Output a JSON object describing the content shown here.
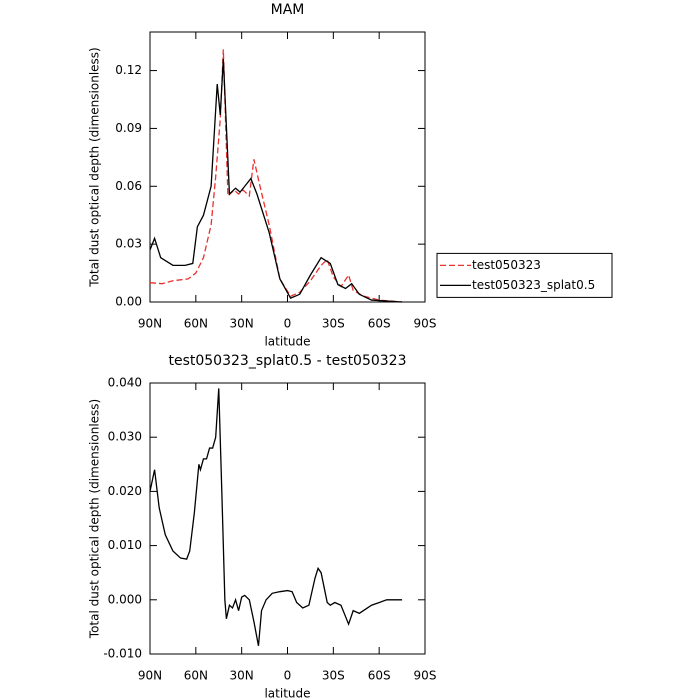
{
  "chart_data": [
    {
      "type": "line",
      "title": "MAM",
      "xlabel": "latitude",
      "ylabel": "Total dust optical depth (dimensionless)",
      "xlim": [
        90,
        -90
      ],
      "xticks": [
        {
          "value": 90,
          "label": "90N"
        },
        {
          "value": 60,
          "label": "60N"
        },
        {
          "value": 30,
          "label": "30N"
        },
        0,
        {
          "value": -30,
          "label": "30S"
        },
        {
          "value": -60,
          "label": "60S"
        },
        {
          "value": -90,
          "label": "90S"
        }
      ],
      "ylim": [
        0,
        0.14
      ],
      "yticks": [
        {
          "value": 0,
          "label": "0.00"
        },
        {
          "value": 0.03,
          "label": "0.03"
        },
        {
          "value": 0.06,
          "label": "0.06"
        },
        {
          "value": 0.09,
          "label": "0.09"
        },
        {
          "value": 0.12,
          "label": "0.12"
        }
      ],
      "legend": "right",
      "series": [
        {
          "name": "test050323",
          "color": "#e8312f",
          "dashed": true,
          "x": [
            90,
            82,
            75,
            65,
            60,
            55,
            50,
            47,
            44,
            42,
            39,
            35,
            32,
            29,
            25,
            22,
            18,
            12,
            5,
            -2,
            -8,
            -15,
            -22,
            -26,
            -30,
            -35,
            -40,
            -43,
            -50,
            -60,
            -75
          ],
          "values": [
            0.01,
            0.0095,
            0.011,
            0.012,
            0.015,
            0.023,
            0.04,
            0.065,
            0.095,
            0.131,
            0.055,
            0.058,
            0.056,
            0.058,
            0.055,
            0.074,
            0.06,
            0.04,
            0.012,
            0.003,
            0.005,
            0.011,
            0.019,
            0.022,
            0.013,
            0.008,
            0.014,
            0.006,
            0.003,
            0.001,
            0.0
          ]
        },
        {
          "name": "test050323_splat0.5",
          "color": "#000000",
          "dashed": false,
          "x": [
            90,
            87,
            83,
            75,
            67,
            62,
            59,
            55,
            50,
            46,
            44,
            42,
            38,
            34,
            31,
            27,
            24,
            20,
            12,
            5,
            -2,
            -8,
            -15,
            -22,
            -28,
            -33,
            -38,
            -42,
            -47,
            -55,
            -75
          ],
          "values": [
            0.027,
            0.033,
            0.023,
            0.019,
            0.019,
            0.02,
            0.039,
            0.045,
            0.06,
            0.113,
            0.097,
            0.126,
            0.056,
            0.059,
            0.057,
            0.061,
            0.064,
            0.056,
            0.036,
            0.012,
            0.002,
            0.004,
            0.014,
            0.023,
            0.02,
            0.009,
            0.007,
            0.0095,
            0.004,
            0.001,
            0.0
          ]
        }
      ]
    },
    {
      "type": "line",
      "title": "test050323_splat0.5 - test050323",
      "xlabel": "latitude",
      "ylabel": "Total dust optical depth (dimensionless)",
      "xlim": [
        90,
        -90
      ],
      "xticks": [
        {
          "value": 90,
          "label": "90N"
        },
        {
          "value": 60,
          "label": "60N"
        },
        {
          "value": 30,
          "label": "30N"
        },
        0,
        {
          "value": -30,
          "label": "30S"
        },
        {
          "value": -60,
          "label": "60S"
        },
        {
          "value": -90,
          "label": "90S"
        }
      ],
      "ylim": [
        -0.01,
        0.04
      ],
      "yticks": [
        {
          "value": -0.01,
          "label": "-0.010"
        },
        {
          "value": 0,
          "label": "0.000"
        },
        {
          "value": 0.01,
          "label": "0.010"
        },
        {
          "value": 0.02,
          "label": "0.020"
        },
        {
          "value": 0.03,
          "label": "0.030"
        },
        {
          "value": 0.04,
          "label": "0.040"
        }
      ],
      "series": [
        {
          "color": "#000000",
          "dashed": false,
          "x": [
            90,
            87,
            84,
            80,
            75,
            70,
            66,
            64,
            61,
            58,
            57,
            55,
            53,
            51,
            49,
            47,
            45,
            43,
            41,
            40,
            38,
            36,
            34,
            32,
            30,
            28,
            25,
            22,
            19,
            17,
            14,
            10,
            5,
            0,
            -3,
            -6,
            -10,
            -14,
            -18,
            -20,
            -22,
            -26,
            -28,
            -31,
            -35,
            -40,
            -43,
            -47,
            -55,
            -65,
            -75
          ],
          "values": [
            0.02,
            0.024,
            0.017,
            0.012,
            0.009,
            0.0077,
            0.0075,
            0.009,
            0.016,
            0.025,
            0.024,
            0.026,
            0.026,
            0.028,
            0.028,
            0.03,
            0.039,
            0.02,
            0.0,
            -0.0035,
            -0.001,
            -0.0015,
            0.0,
            -0.002,
            0.0005,
            0.0008,
            0.0,
            -0.004,
            -0.0085,
            -0.002,
            0.0,
            0.0012,
            0.0015,
            0.0017,
            0.0015,
            -0.0005,
            -0.0015,
            -0.001,
            0.004,
            0.0058,
            0.005,
            -0.0005,
            -0.001,
            -0.0005,
            -0.001,
            -0.0045,
            -0.002,
            -0.0025,
            -0.001,
            0.0,
            0.0
          ]
        }
      ]
    }
  ]
}
